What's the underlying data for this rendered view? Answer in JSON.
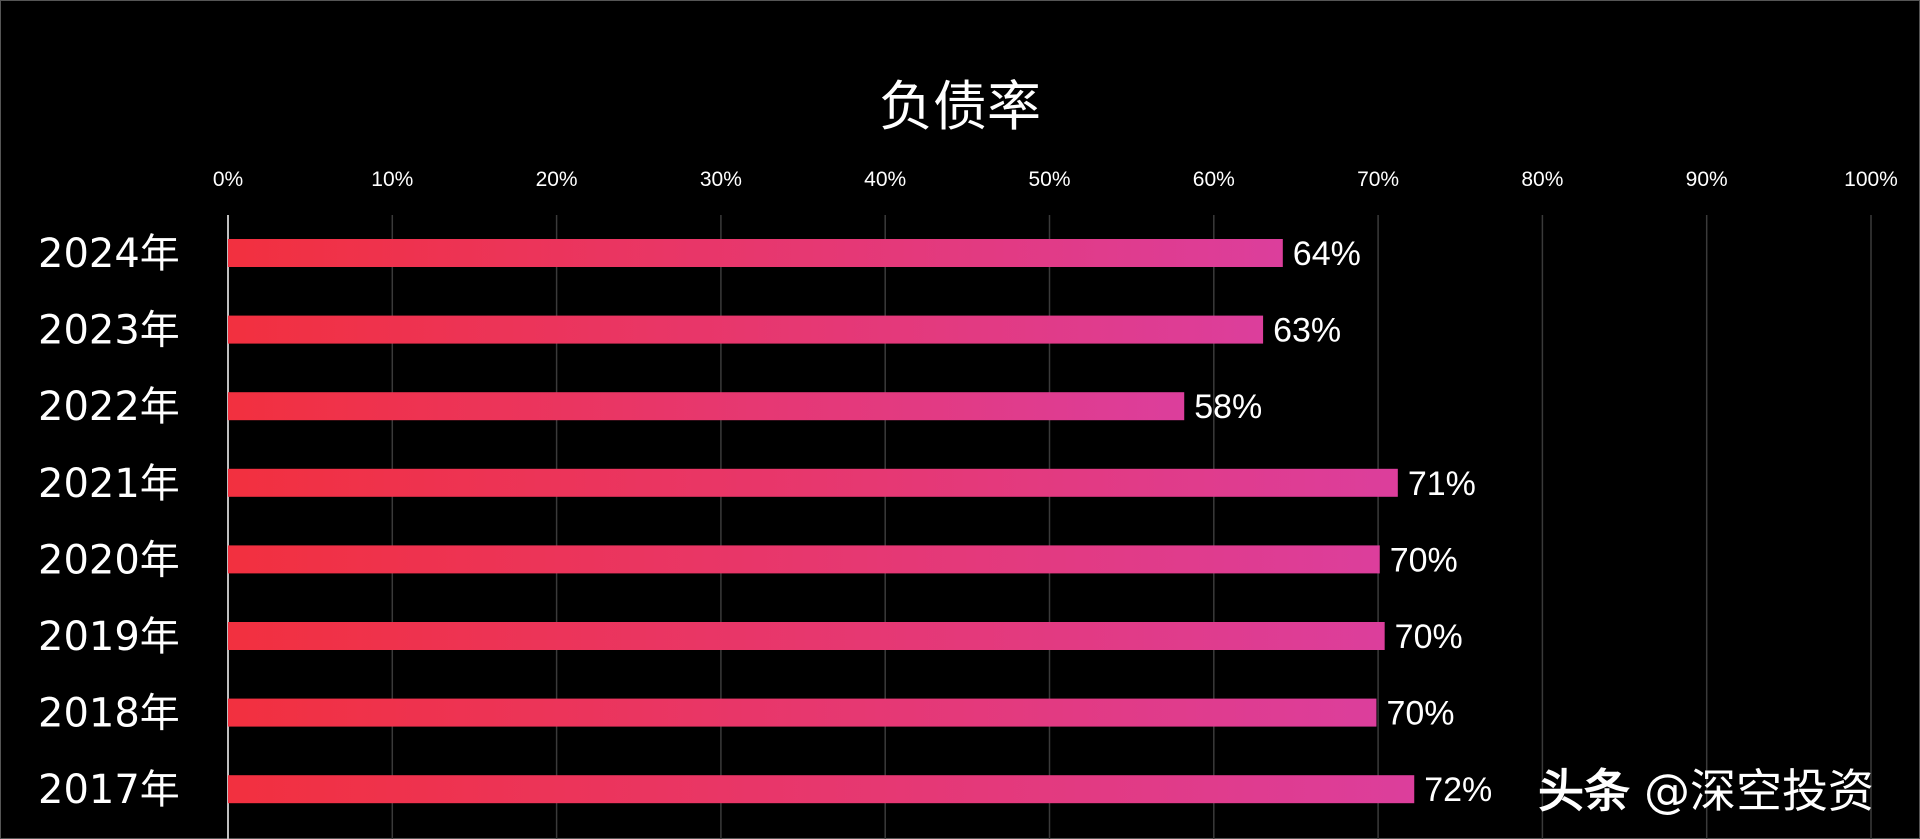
{
  "chart_data": {
    "type": "bar",
    "orientation": "horizontal",
    "title": "负债率",
    "categories": [
      "2024年",
      "2023年",
      "2022年",
      "2021年",
      "2020年",
      "2019年",
      "2018年",
      "2017年"
    ],
    "values": [
      64.2,
      63.0,
      58.2,
      71.2,
      70.1,
      70.4,
      69.9,
      72.2
    ],
    "data_labels": [
      "64%",
      "63%",
      "58%",
      "71%",
      "70%",
      "70%",
      "70%",
      "72%"
    ],
    "xlim": [
      0,
      100
    ],
    "x_ticks": [
      "0%",
      "10%",
      "20%",
      "30%",
      "40%",
      "50%",
      "60%",
      "70%",
      "80%",
      "90%",
      "100%"
    ],
    "x_axis_position": "top",
    "grid": true,
    "legend": "none",
    "bar_gradient": [
      "#f2303f",
      "#dc3e9c"
    ],
    "background": "#000000"
  },
  "watermark": {
    "brand": "头条",
    "account": "@深空投资"
  }
}
